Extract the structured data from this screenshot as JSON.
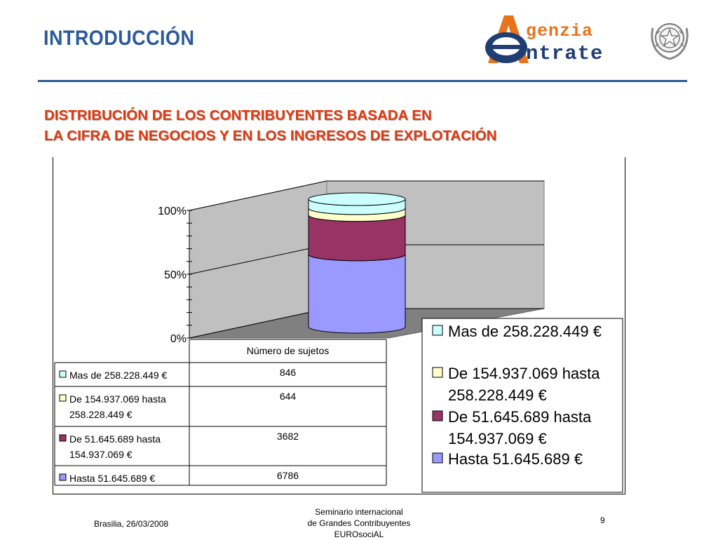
{
  "slide": {
    "title": "INTRODUCCIÓN",
    "subtitle_line1": "DISTRIBUCIÓN DE LOS CONTRIBUYENTES BASADA EN",
    "subtitle_line2": "LA CIFRA DE NEGOCIOS Y EN LOS INGRESOS DE EXPLOTACIÓN"
  },
  "logo": {
    "line1": "genzia",
    "line2": "ntrate",
    "brand_orange": "#e8731a",
    "brand_blue": "#1f3e73"
  },
  "footer": {
    "left": "Brasilia, 26/03/2008",
    "mid_line1": "Seminario internacional",
    "mid_line2": "de Grandes Contribuyentes",
    "mid_line3": "EUROsociAL",
    "page_number": "9"
  },
  "chart_data": {
    "type": "bar",
    "stacked": "percent",
    "style": "3d-cylinder",
    "categories": [
      "Número de sujetos"
    ],
    "series": [
      {
        "name": "Hasta 51.645.689 €",
        "values": [
          6786
        ],
        "color": "#9999ff",
        "label_lines": [
          "Hasta 51.645.689 €"
        ]
      },
      {
        "name": "De 51.645.689 hasta 154.937.069 €",
        "values": [
          3682
        ],
        "color": "#993366",
        "label_lines": [
          "De 51.645.689 hasta",
          "154.937.069 €"
        ]
      },
      {
        "name": "De 154.937.069 hasta 258.228.449 €",
        "values": [
          644
        ],
        "color": "#ffffcc",
        "label_lines": [
          "De 154.937.069 hasta",
          "258.228.449 €"
        ]
      },
      {
        "name": "Mas de 258.228.449 €",
        "values": [
          846
        ],
        "color": "#ccffff",
        "label_lines": [
          "Mas de 258.228.449 €"
        ]
      }
    ],
    "yticks": [
      "0%",
      "50%",
      "100%"
    ],
    "ylim": [
      0,
      100
    ],
    "grid": true,
    "legend_position": "right",
    "data_table": true,
    "table_header": "Número de sujetos",
    "table_rows": [
      {
        "label_lines": [
          "Mas de 258.228.449 €"
        ],
        "value": "846",
        "color": "#ccffff"
      },
      {
        "label_lines": [
          "De 154.937.069 hasta",
          "258.228.449 €"
        ],
        "value": "644",
        "color": "#ffffcc"
      },
      {
        "label_lines": [
          "De 51.645.689 hasta",
          "154.937.069 €"
        ],
        "value": "3682",
        "color": "#993366"
      },
      {
        "label_lines": [
          "Hasta 51.645.689 €"
        ],
        "value": "6786",
        "color": "#9999ff"
      }
    ],
    "legend": [
      {
        "label_lines": [
          "Mas de 258.228.449 €"
        ],
        "color": "#ccffff"
      },
      {
        "label_lines": [
          "De 154.937.069 hasta",
          "258.228.449 €"
        ],
        "color": "#ffffcc"
      },
      {
        "label_lines": [
          "De 51.645.689 hasta",
          "154.937.069 €"
        ],
        "color": "#993366"
      },
      {
        "label_lines": [
          "Hasta 51.645.689 €"
        ],
        "color": "#9999ff"
      }
    ]
  }
}
